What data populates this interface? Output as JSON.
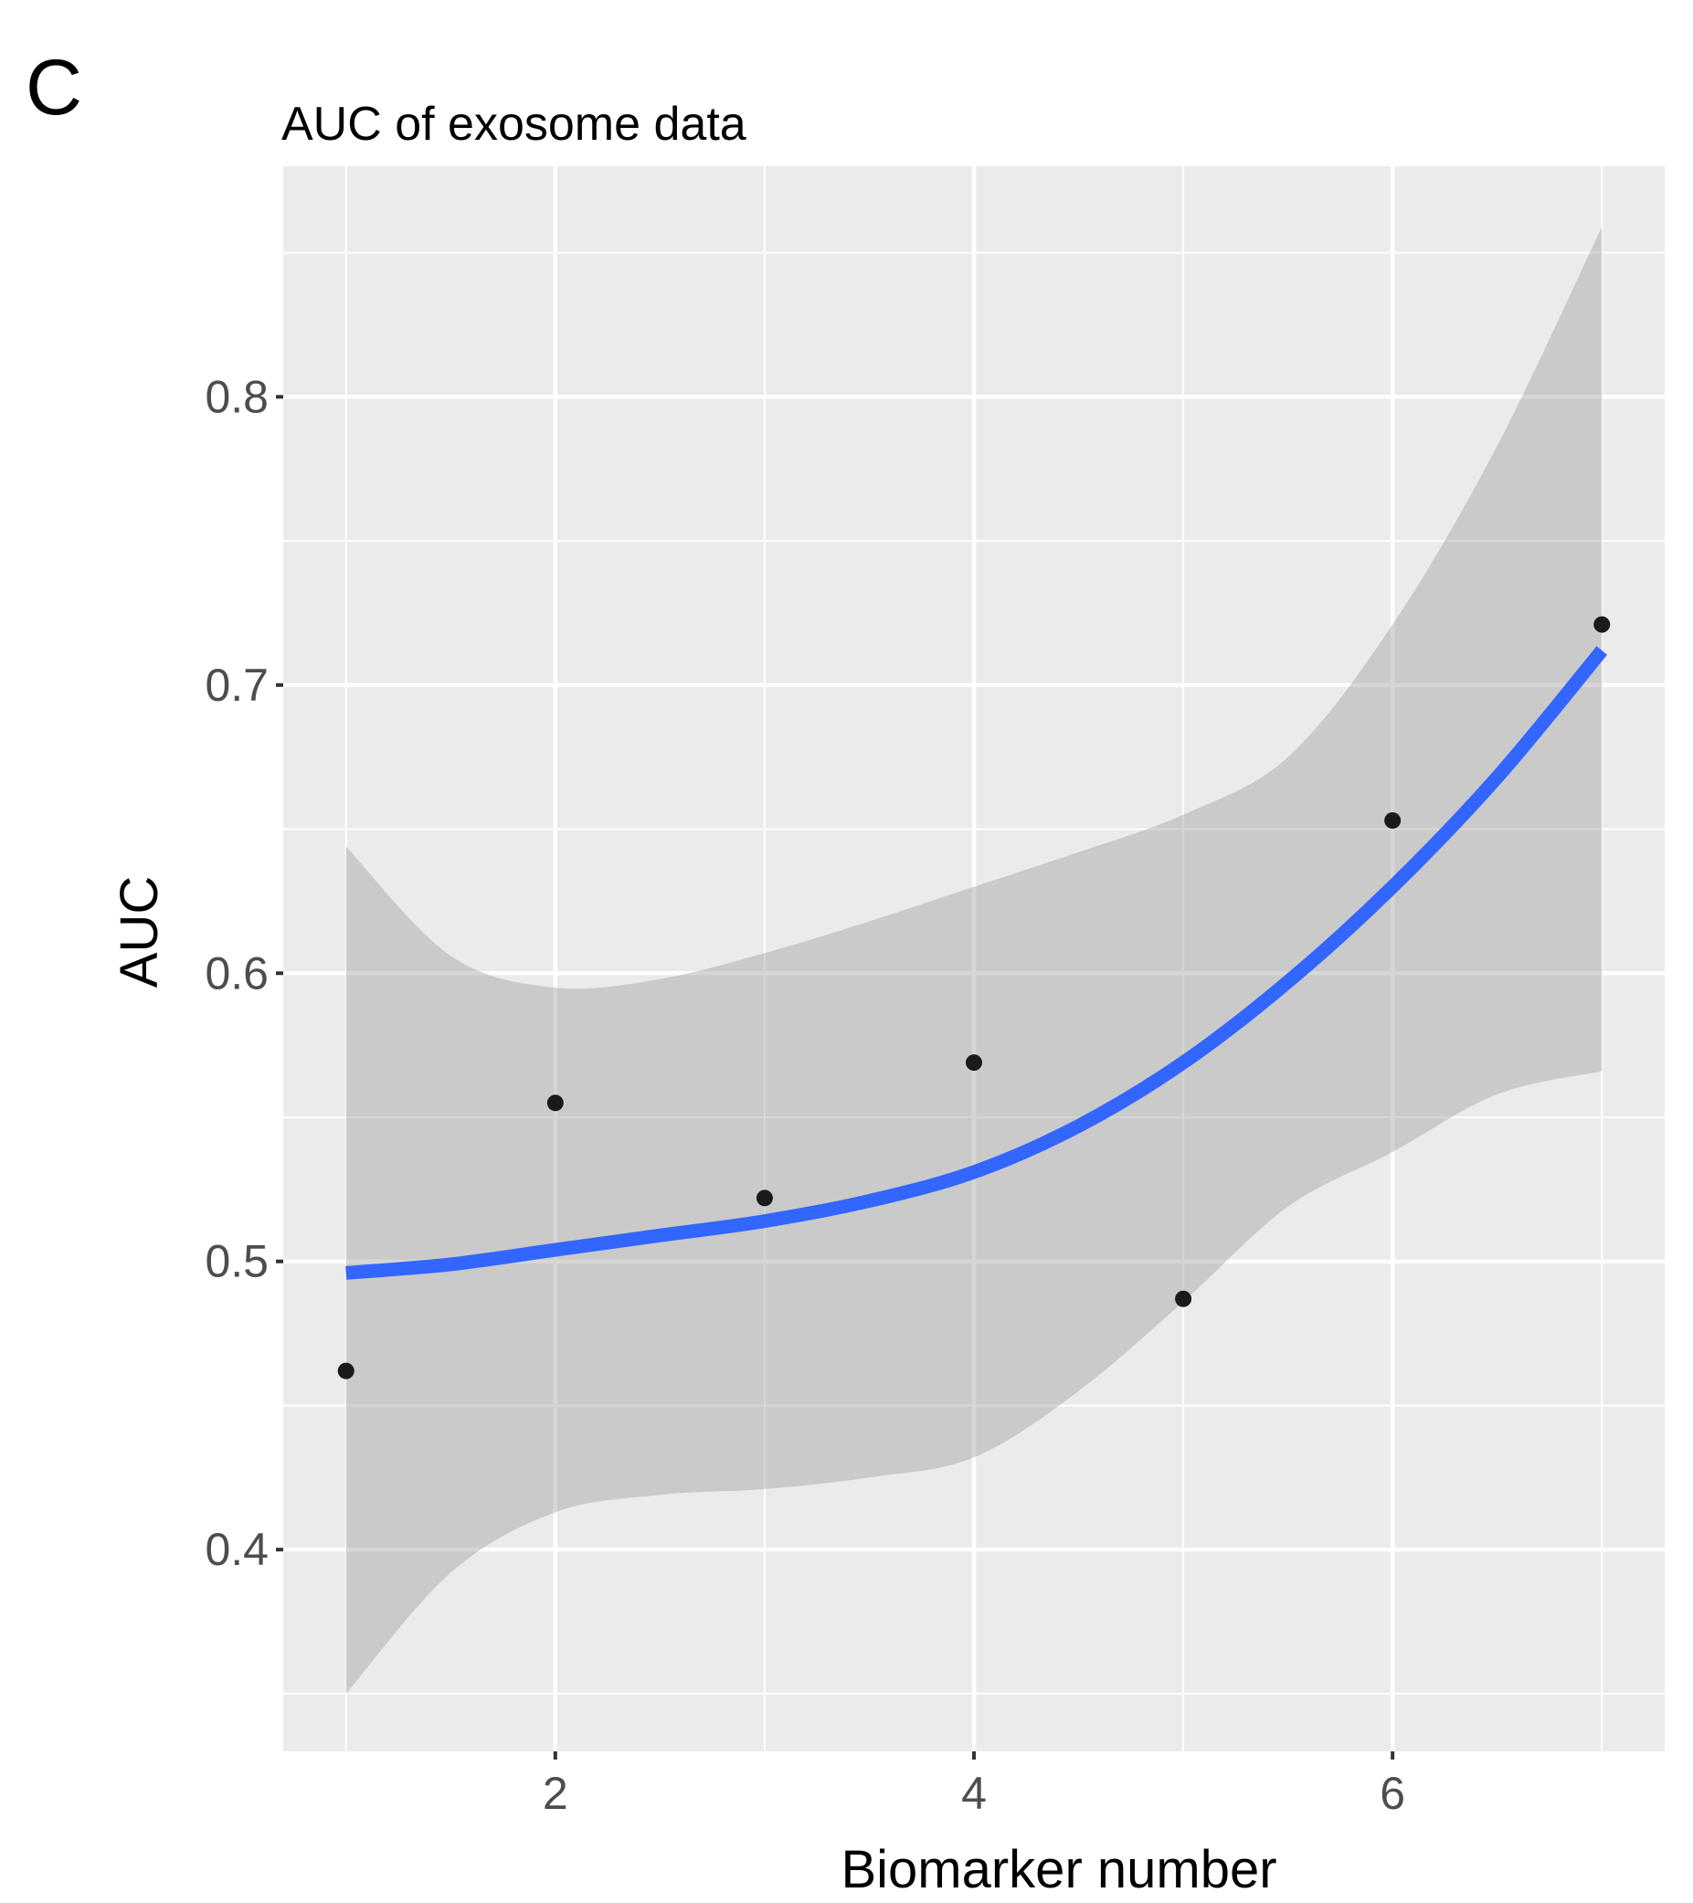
{
  "panel_label": "C",
  "chart_data": {
    "type": "scatter",
    "title": "AUC of exosome data",
    "xlabel": "Biomarker number",
    "ylabel": "AUC",
    "xlim": [
      0.7,
      7.3
    ],
    "ylim": [
      0.33,
      0.88
    ],
    "x_ticks": [
      2,
      4,
      6
    ],
    "x_tick_labels": [
      "2",
      "4",
      "6"
    ],
    "x_minor_ticks": [
      1,
      3,
      5,
      7
    ],
    "y_ticks": [
      0.4,
      0.5,
      0.6,
      0.7,
      0.8
    ],
    "y_tick_labels": [
      "0.4",
      "0.5",
      "0.6",
      "0.7",
      "0.8"
    ],
    "y_minor_ticks": [
      0.35,
      0.45,
      0.55,
      0.65,
      0.75,
      0.85
    ],
    "grid": true,
    "points": [
      {
        "x": 1,
        "y": 0.462
      },
      {
        "x": 2,
        "y": 0.555
      },
      {
        "x": 3,
        "y": 0.522
      },
      {
        "x": 4,
        "y": 0.569
      },
      {
        "x": 5,
        "y": 0.487
      },
      {
        "x": 6,
        "y": 0.653
      },
      {
        "x": 7,
        "y": 0.721
      }
    ],
    "smooth": {
      "x": [
        1,
        1.5,
        2,
        2.5,
        3,
        3.5,
        4,
        4.5,
        5,
        5.5,
        6,
        6.5,
        7
      ],
      "y": [
        0.496,
        0.499,
        0.504,
        0.509,
        0.514,
        0.521,
        0.531,
        0.547,
        0.569,
        0.597,
        0.63,
        0.668,
        0.712
      ],
      "lower": [
        0.35,
        0.392,
        0.413,
        0.419,
        0.421,
        0.425,
        0.432,
        0.455,
        0.486,
        0.519,
        0.538,
        0.558,
        0.566
      ],
      "upper": [
        0.644,
        0.606,
        0.595,
        0.598,
        0.607,
        0.618,
        0.63,
        0.642,
        0.655,
        0.675,
        0.721,
        0.783,
        0.859
      ]
    },
    "colors": {
      "panel_background": "#ebebeb",
      "grid_line": "#ffffff",
      "point": "#1a1a1a",
      "smooth_line": "#3366ff",
      "confidence_band": "#999999",
      "tick_label": "#4d4d4d"
    }
  }
}
